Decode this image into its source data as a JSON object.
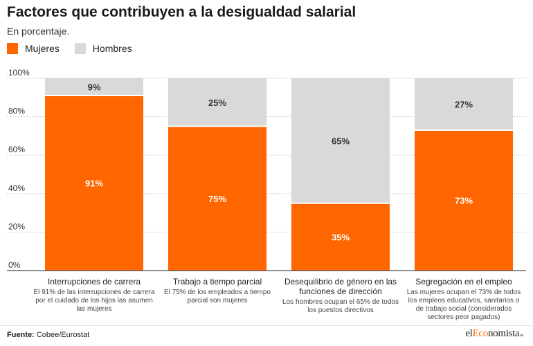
{
  "header": {
    "title": "Factores que contribuyen a la desigualdad salarial",
    "subtitle": "En porcentaje."
  },
  "legend": [
    {
      "label": "Mujeres",
      "color": "#ff6600"
    },
    {
      "label": "Hombres",
      "color": "#d9d9d9"
    }
  ],
  "footer": {
    "source_label": "Fuente:",
    "source_text": "Cobee/Eurostat",
    "brand_pre": "el",
    "brand_accent": "Eco",
    "brand_post": "nomista",
    "brand_tld": ".es"
  },
  "chart_data": {
    "type": "bar",
    "stacked": true,
    "categories": [
      "Interrupciones de carrera",
      "Trabajo a tiempo parcial",
      "Desequilibrio de género en las funciones de dirección",
      "Segregación en el empleo"
    ],
    "category_lines": [
      [
        "Interrupciones de carrera"
      ],
      [
        "Trabajo a tiempo parcial"
      ],
      [
        "Desequilibrio de género en las",
        "funciones de dirección"
      ],
      [
        "Segregación en el empleo"
      ]
    ],
    "descriptions": [
      [
        "El 91% de las interrupciones de carrera",
        "por el cuidado de los hijos las asumen",
        "las mujeres"
      ],
      [
        "El 75% de los empleados a tiempo",
        "parcial son mujeres"
      ],
      [
        "Los hombres ocupan el 65% de todos",
        "los puestos directivos"
      ],
      [
        "Las mujeres ocupan el 73% de todos",
        "los empleos educativos, sanitarios o",
        "de trabajo social (considerados",
        "sectores peor pagados)"
      ]
    ],
    "series": [
      {
        "name": "Mujeres",
        "values": [
          91,
          75,
          35,
          73
        ],
        "labels": [
          "91%",
          "75%",
          "35%",
          "73%"
        ],
        "color": "#ff6600"
      },
      {
        "name": "Hombres",
        "values": [
          9,
          25,
          65,
          27
        ],
        "labels": [
          "9%",
          "25%",
          "65%",
          "27%"
        ],
        "color": "#d9d9d9"
      }
    ],
    "yticks": [
      "0%",
      "20%",
      "40%",
      "60%",
      "80%",
      "100%"
    ],
    "ylim": [
      0,
      100
    ],
    "grid": true
  }
}
